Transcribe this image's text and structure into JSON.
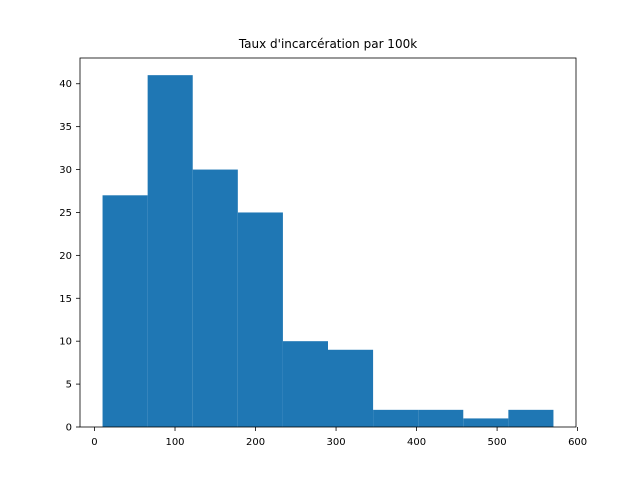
{
  "chart_data": {
    "type": "bar",
    "subtype": "histogram",
    "title": "Taux d'incarcération par 100k",
    "xlabel": "",
    "ylabel": "",
    "bins": [
      {
        "start": 10,
        "end": 66,
        "count": 27
      },
      {
        "start": 66,
        "end": 122,
        "count": 41
      },
      {
        "start": 122,
        "end": 178,
        "count": 30
      },
      {
        "start": 178,
        "end": 234,
        "count": 25
      },
      {
        "start": 234,
        "end": 290,
        "count": 10
      },
      {
        "start": 290,
        "end": 346,
        "count": 9
      },
      {
        "start": 346,
        "end": 402,
        "count": 2
      },
      {
        "start": 402,
        "end": 458,
        "count": 2
      },
      {
        "start": 458,
        "end": 514,
        "count": 1
      },
      {
        "start": 514,
        "end": 570,
        "count": 2
      }
    ],
    "xlim": [
      -18,
      598
    ],
    "ylim": [
      0,
      43
    ],
    "xticks": [
      0,
      100,
      200,
      300,
      400,
      500,
      600
    ],
    "yticks": [
      0,
      5,
      10,
      15,
      20,
      25,
      30,
      35,
      40
    ],
    "grid": false,
    "colors": {
      "bar": "#1f77b4",
      "axes": "#000000",
      "background": "#ffffff"
    }
  }
}
